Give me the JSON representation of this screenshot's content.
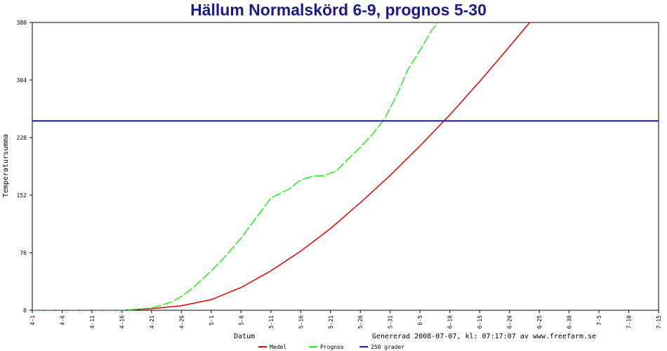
{
  "chart_data": {
    "type": "line",
    "title": "Hällum Normalskörd 6-9, prognos 5-30",
    "xlabel": "Datum",
    "ylabel": "Temperatursumma",
    "footer": "Genererad 2008-07-07, kl: 07:17:07 av www.freefarm.se",
    "ylim": [
      0,
      380
    ],
    "yticks": [
      "0",
      "76",
      "152",
      "228",
      "304",
      "380"
    ],
    "xlim": [
      "4-1",
      "7-15"
    ],
    "xticks": [
      "4-1",
      "4-6",
      "4-11",
      "4-16",
      "4-21",
      "4-26",
      "5-1",
      "5-6",
      "5-11",
      "5-16",
      "5-21",
      "5-26",
      "5-31",
      "6-5",
      "6-10",
      "6-15",
      "6-20",
      "6-25",
      "6-30",
      "7-5",
      "7-10",
      "7-15"
    ],
    "grid": false,
    "legend_position": "bottom",
    "series": [
      {
        "name": "Medel",
        "color": "#e00000",
        "style": "solid",
        "x": [
          "4-1",
          "4-16",
          "4-21",
          "4-26",
          "5-1",
          "5-6",
          "5-11",
          "5-16",
          "5-21",
          "5-26",
          "5-31",
          "6-5",
          "6-10",
          "6-15",
          "6-20",
          "6-25",
          "6-27"
        ],
        "values": [
          0,
          0,
          2,
          6,
          14,
          30,
          52,
          78,
          108,
          142,
          178,
          217,
          258,
          302,
          348,
          395,
          415
        ]
      },
      {
        "name": "Prognos",
        "color": "#22ee22",
        "style": "dashed",
        "x": [
          "4-1",
          "4-16",
          "4-21",
          "4-24",
          "4-26",
          "4-28",
          "5-1",
          "5-3",
          "5-6",
          "5-9",
          "5-11",
          "5-14",
          "5-16",
          "5-18",
          "5-20",
          "5-22",
          "5-24",
          "5-26",
          "5-28",
          "5-30",
          "6-1",
          "6-3",
          "6-5",
          "6-7",
          "6-9",
          "6-10"
        ],
        "values": [
          0,
          0,
          3,
          10,
          18,
          30,
          52,
          68,
          95,
          127,
          148,
          160,
          172,
          177,
          178,
          184,
          200,
          215,
          232,
          252,
          282,
          318,
          343,
          370,
          390,
          400
        ]
      },
      {
        "name": "250 grader",
        "color": "#1a1aaa",
        "style": "solid",
        "x": [
          "4-1",
          "7-15"
        ],
        "values": [
          250,
          250
        ]
      }
    ]
  }
}
